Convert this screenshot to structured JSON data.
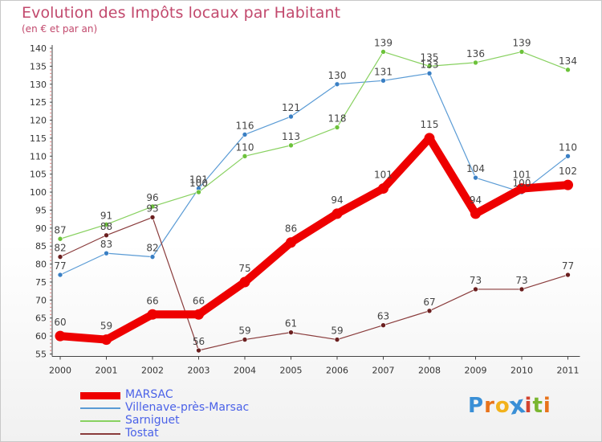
{
  "title": "Evolution des Impôts locaux par Habitant",
  "subtitle": "(en € et par an)",
  "logo": {
    "text": "Proxiti",
    "colors": [
      "#3a8fd6",
      "#e8731a",
      "#f2b21c",
      "#3a8fd6",
      "#d3432f",
      "#7ab630",
      "#e8731a"
    ]
  },
  "chart_data": {
    "type": "line",
    "title": "Evolution des Impôts locaux par Habitant",
    "subtitle": "(en € et par an)",
    "xlabel": "",
    "ylabel": "",
    "ylim": [
      55,
      140
    ],
    "y_ticks": [
      55,
      60,
      65,
      70,
      75,
      80,
      85,
      90,
      95,
      100,
      105,
      110,
      115,
      120,
      125,
      130,
      135,
      140
    ],
    "grid": false,
    "legend_position": "bottom-left",
    "x": [
      "2000",
      "2001",
      "2002",
      "2003",
      "2004",
      "2005",
      "2006",
      "2007",
      "2008",
      "2009",
      "2010",
      "2011"
    ],
    "series": [
      {
        "name": "Villenave-près-Marsac",
        "color": "#5a9bd5",
        "marker": "#3a7fc4",
        "values": [
          77,
          83,
          82,
          101,
          116,
          121,
          130,
          131,
          133,
          104,
          100,
          110
        ]
      },
      {
        "name": "Sarniguet",
        "color": "#88d160",
        "marker": "#6cc23a",
        "values": [
          87,
          91,
          96,
          100,
          110,
          113,
          118,
          139,
          135,
          136,
          139,
          134
        ]
      },
      {
        "name": "Tostat",
        "color": "#8a3c3c",
        "marker": "#6b1f1f",
        "values": [
          82,
          88,
          93,
          56,
          59,
          61,
          59,
          63,
          67,
          73,
          73,
          77
        ]
      },
      {
        "name": "MARSAC",
        "color": "#ee0000",
        "marker": "#ee0000",
        "values": [
          60,
          59,
          66,
          66,
          75,
          86,
          94,
          101,
          115,
          94,
          101,
          102
        ]
      }
    ],
    "legend": [
      "MARSAC",
      "Villenave-près-Marsac",
      "Sarniguet",
      "Tostat"
    ]
  }
}
